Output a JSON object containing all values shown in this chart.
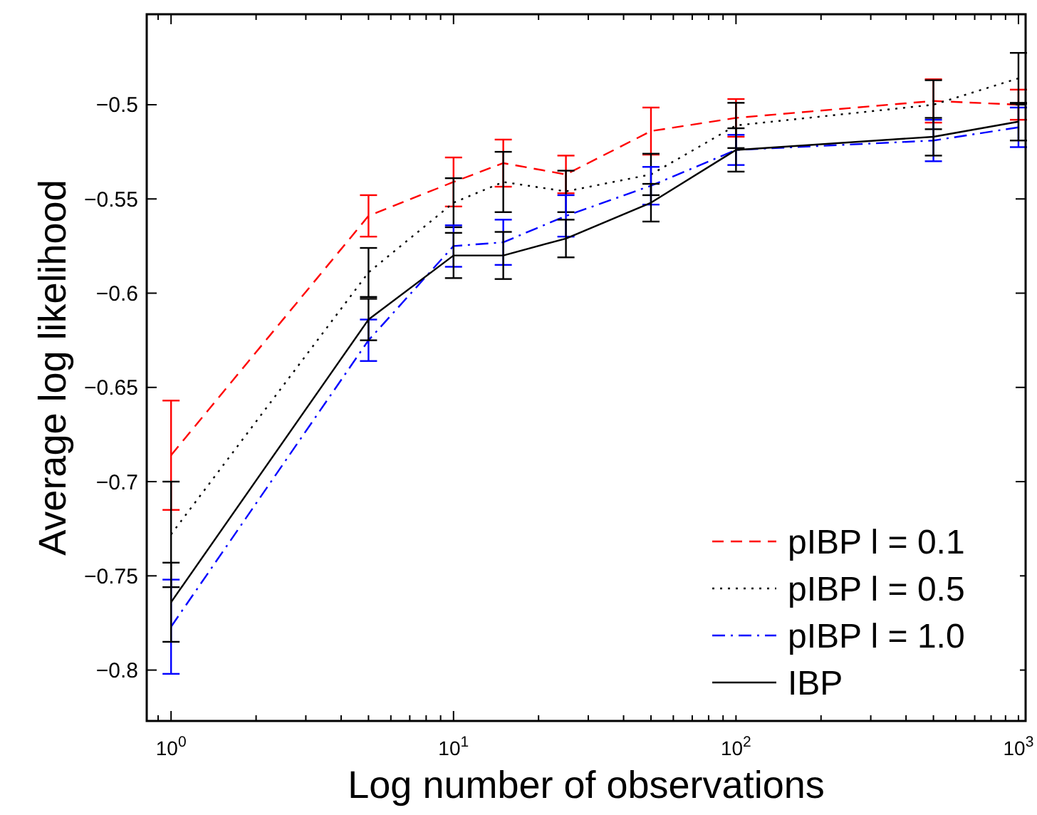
{
  "chart_data": {
    "type": "line",
    "xlabel": "Log number of observations",
    "ylabel": "Average log likelihood",
    "log": "x",
    "xlim": [
      0.82,
      1060
    ],
    "ylim": [
      -0.827,
      -0.452
    ],
    "xticks": [
      {
        "value": 1,
        "label": "10$^{0}$"
      },
      {
        "value": 10,
        "label": "10$^{1}$"
      },
      {
        "value": 100,
        "label": "10$^{2}$"
      },
      {
        "value": 1000,
        "label": "10$^{3}$"
      }
    ],
    "yticks": [
      -0.8,
      -0.75,
      -0.7,
      -0.65,
      -0.6,
      -0.55,
      -0.5
    ],
    "x": [
      1,
      5,
      10,
      15,
      25,
      50,
      100,
      500,
      1000
    ],
    "grid": false,
    "legend": "bottom right",
    "marker": "none",
    "series": [
      {
        "name": "pIBP l = 0.1",
        "color": "#ff0000",
        "line_style": "dashed",
        "values": [
          -0.686,
          -0.559,
          -0.541,
          -0.531,
          -0.537,
          -0.514,
          -0.507,
          -0.498,
          -0.5
        ],
        "errors": [
          0.029,
          0.011,
          0.013,
          0.0125,
          0.01,
          0.0125,
          0.01,
          0.0115,
          0.008
        ]
      },
      {
        "name": "pIBP l = 0.5",
        "color": "#000000",
        "line_style": "dotted",
        "values": [
          -0.728,
          -0.589,
          -0.552,
          -0.541,
          -0.546,
          -0.537,
          -0.511,
          -0.5,
          -0.486
        ],
        "errors": [
          0.028,
          0.013,
          0.013,
          0.016,
          0.011,
          0.011,
          0.012,
          0.013,
          0.0135
        ]
      },
      {
        "name": "pIBP l = 1.0",
        "color": "#0000ff",
        "line_style": "dashdot",
        "values": [
          -0.777,
          -0.625,
          -0.575,
          -0.573,
          -0.559,
          -0.543,
          -0.524,
          -0.519,
          -0.512
        ],
        "errors": [
          0.025,
          0.011,
          0.011,
          0.012,
          0.011,
          0.01,
          0.008,
          0.011,
          0.0105
        ]
      },
      {
        "name": "IBP",
        "color": "#000000",
        "line_style": "solid",
        "values": [
          -0.764,
          -0.614,
          -0.58,
          -0.58,
          -0.571,
          -0.552,
          -0.524,
          -0.517,
          -0.509
        ],
        "errors": [
          0.021,
          0.011,
          0.012,
          0.0125,
          0.01,
          0.01,
          0.0115,
          0.01,
          0.01
        ]
      }
    ]
  }
}
